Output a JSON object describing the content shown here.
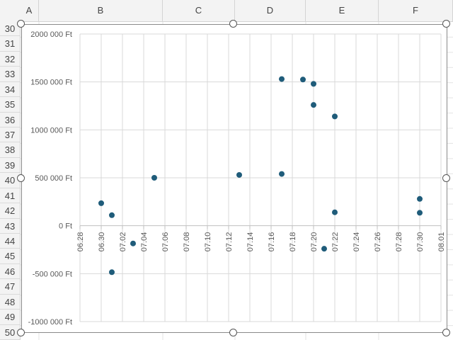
{
  "sheet": {
    "columns": [
      "A",
      "B",
      "C",
      "D",
      "E",
      "F"
    ],
    "rows": [
      "30",
      "31",
      "32",
      "33",
      "34",
      "35",
      "36",
      "37",
      "38",
      "39",
      "40",
      "41",
      "42",
      "43",
      "44",
      "45",
      "46",
      "47",
      "48",
      "49",
      "50"
    ]
  },
  "colors": {
    "marker": "#1f5c7a",
    "gridline": "#d9d9d9",
    "axis": "#bfbfbf",
    "text": "#595959"
  },
  "chart_data": {
    "type": "scatter",
    "title": "",
    "xlabel": "",
    "ylabel": "",
    "grid": true,
    "legend": "none",
    "xlim": [
      "06.28",
      "08.01"
    ],
    "ylim": [
      -1000000,
      2000000
    ],
    "x_ticks": [
      "06.28",
      "06.30",
      "07.02",
      "07.04",
      "07.06",
      "07.08",
      "07.10",
      "07.12",
      "07.14",
      "07.16",
      "07.18",
      "07.20",
      "07.22",
      "07.24",
      "07.26",
      "07.28",
      "07.30",
      "08.01"
    ],
    "y_ticks": [
      "2000 000 Ft",
      "1500 000 Ft",
      "1000 000 Ft",
      "500 000 Ft",
      "0 Ft",
      "-500 000 Ft",
      "-1000 000 Ft"
    ],
    "y_tick_values": [
      2000000,
      1500000,
      1000000,
      500000,
      0,
      -500000,
      -1000000
    ],
    "points": [
      {
        "x": "06.30",
        "y": 235000
      },
      {
        "x": "07.01",
        "y": 110000
      },
      {
        "x": "07.01",
        "y": -485000
      },
      {
        "x": "07.03",
        "y": -185000
      },
      {
        "x": "07.05",
        "y": 500000
      },
      {
        "x": "07.13",
        "y": 530000
      },
      {
        "x": "07.17",
        "y": 1530000
      },
      {
        "x": "07.17",
        "y": 540000
      },
      {
        "x": "07.19",
        "y": 1525000
      },
      {
        "x": "07.20",
        "y": 1480000
      },
      {
        "x": "07.20",
        "y": 1260000
      },
      {
        "x": "07.21",
        "y": -240000
      },
      {
        "x": "07.22",
        "y": 1140000
      },
      {
        "x": "07.22",
        "y": 140000
      },
      {
        "x": "07.30",
        "y": 280000
      },
      {
        "x": "07.30",
        "y": 135000
      }
    ]
  }
}
